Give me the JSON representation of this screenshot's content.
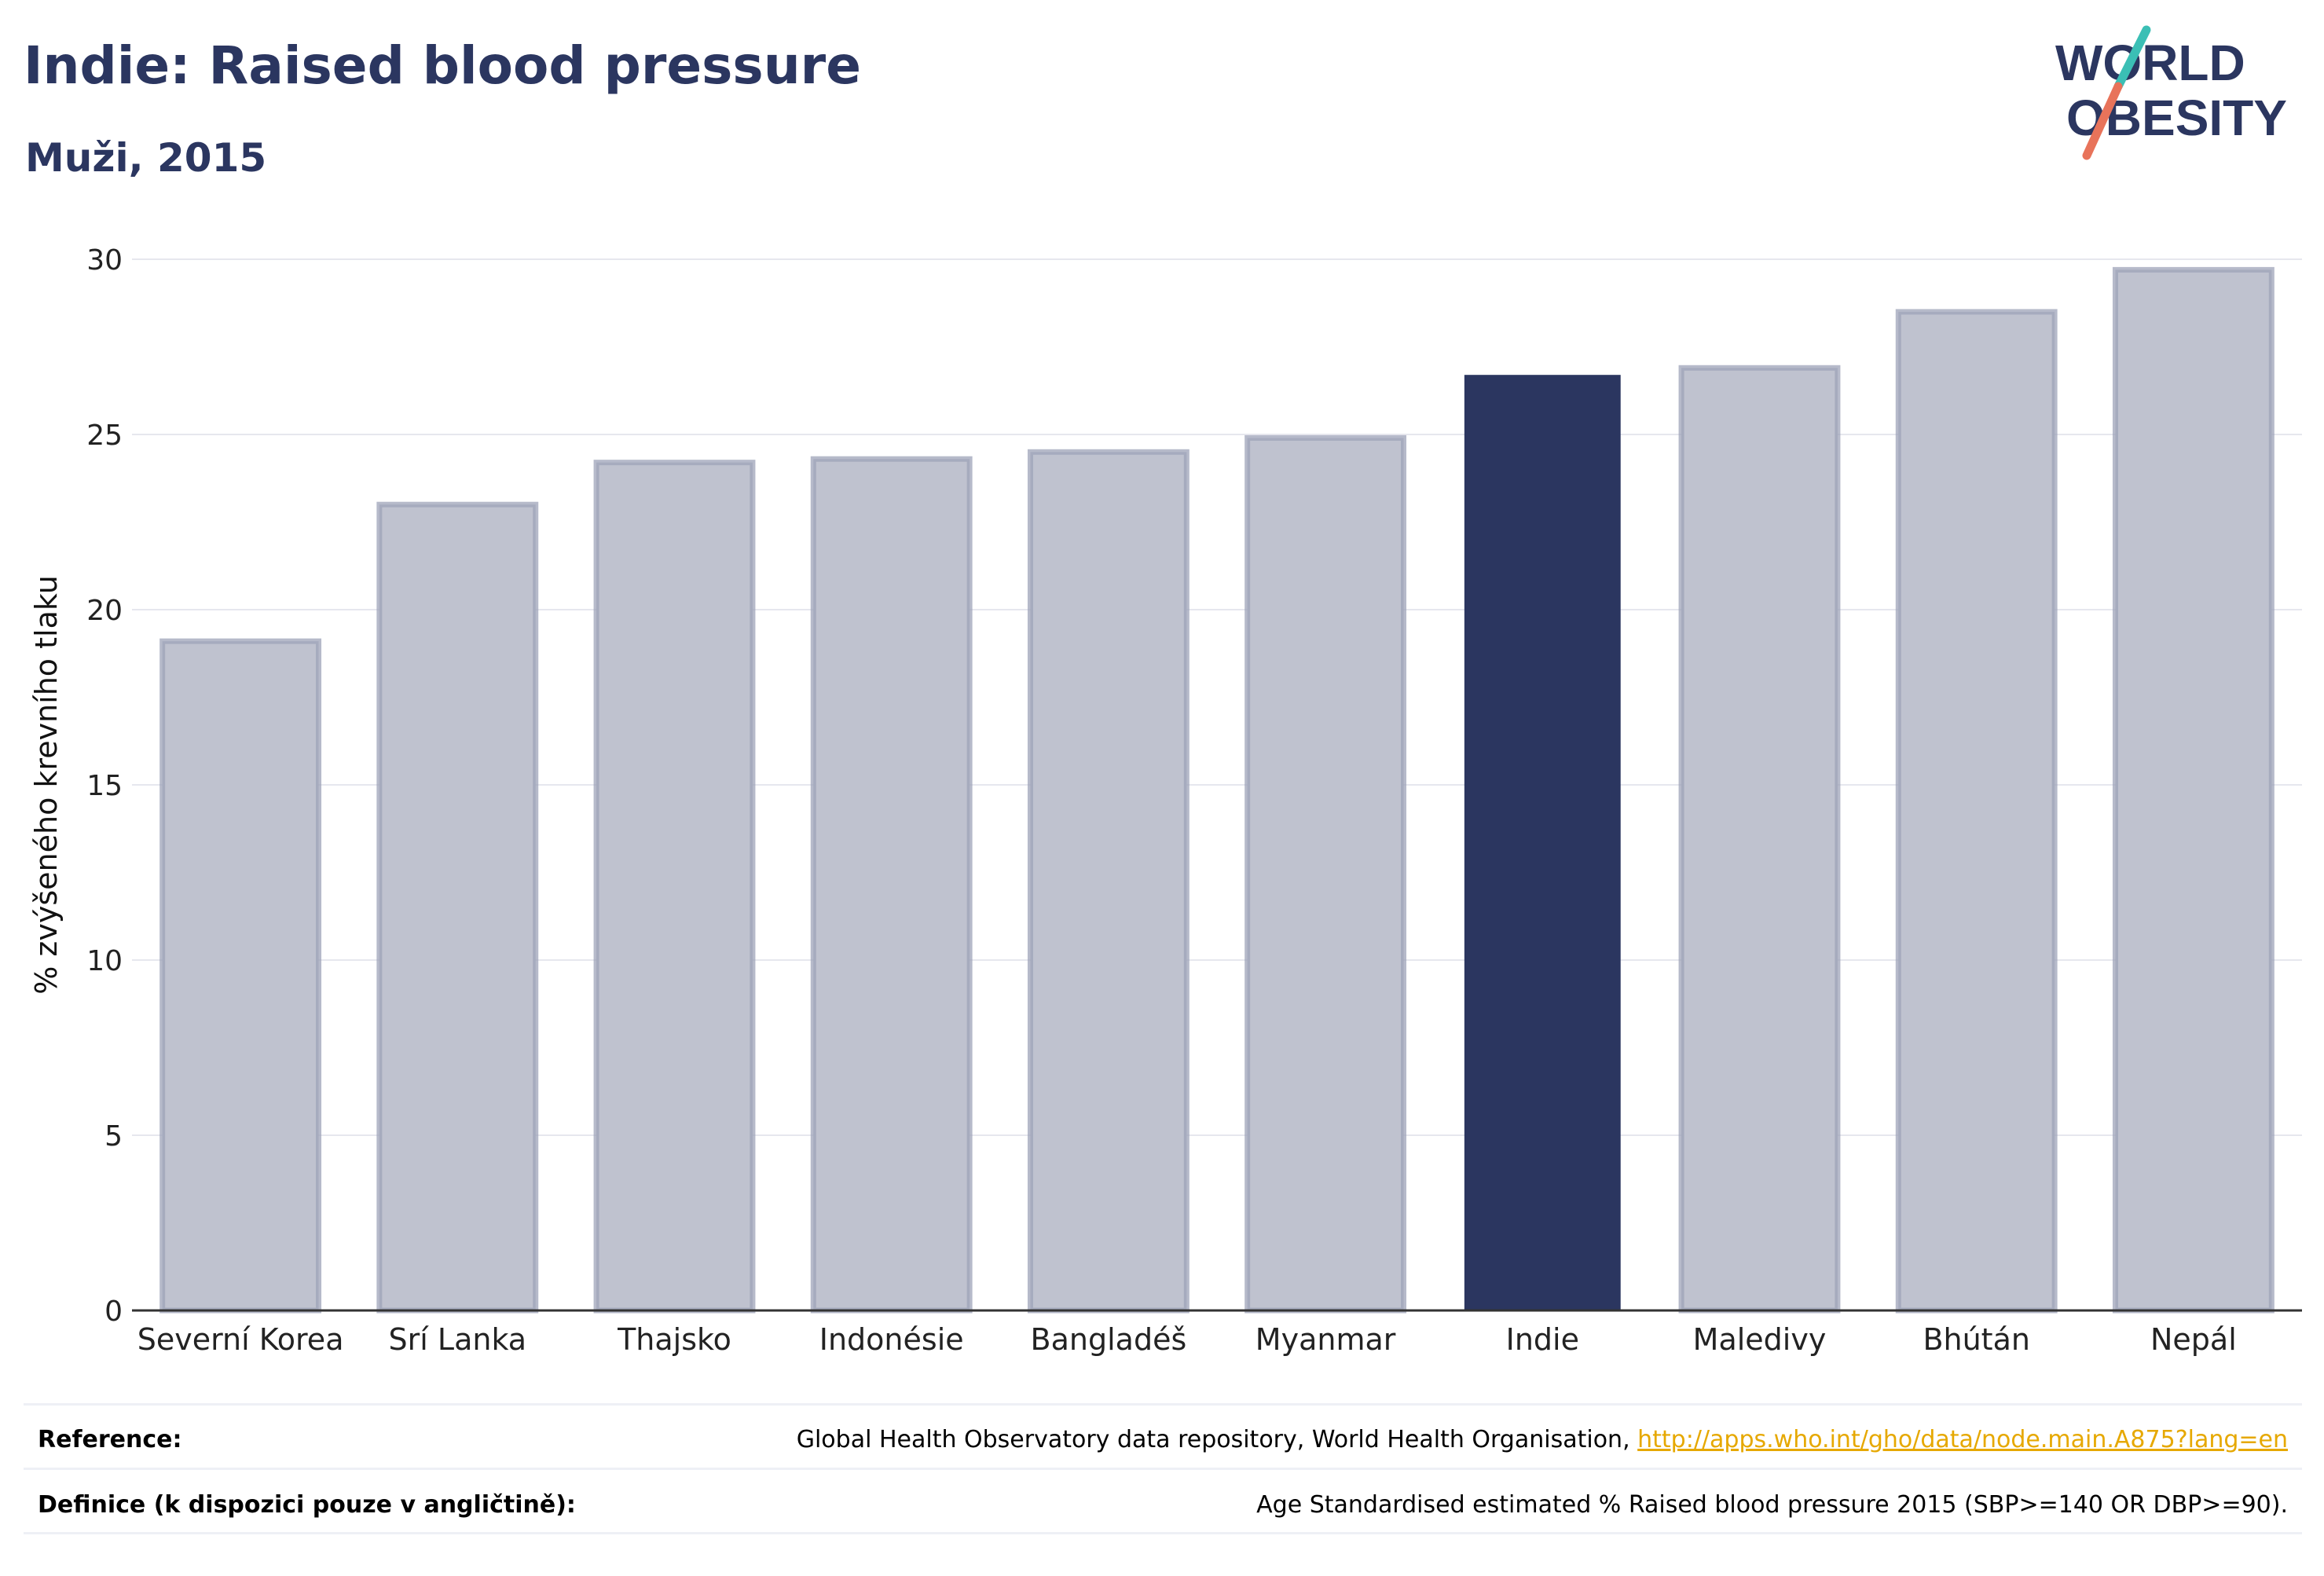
{
  "header": {
    "title": "Indie: Raised blood pressure",
    "subtitle": "Muži, 2015"
  },
  "logo": {
    "line1": "WORLD",
    "line2": "OBESITY",
    "brand_color": "#2b3660",
    "slash_colors": [
      "#3bbfb5",
      "#e8735a"
    ]
  },
  "chart_data": {
    "type": "bar",
    "title": "Indie: Raised blood pressure",
    "subtitle": "Muži, 2015",
    "ylabel": "% zvýšeného krevního tlaku",
    "xlabel": "",
    "ylim": [
      0,
      30
    ],
    "yticks": [
      0,
      5,
      10,
      15,
      20,
      25,
      30
    ],
    "grid": true,
    "highlight": "Indie",
    "colors": {
      "default": "#bfc2cf",
      "default_border": "#9ea3b8",
      "highlight": "#2b3660"
    },
    "categories": [
      "Severní Korea",
      "Srí Lanka",
      "Thajsko",
      "Indonésie",
      "Bangladéš",
      "Myanmar",
      "Indie",
      "Maledivy",
      "Bhútán",
      "Nepál"
    ],
    "values": [
      19.1,
      23.0,
      24.2,
      24.3,
      24.5,
      24.9,
      26.7,
      26.9,
      28.5,
      29.7
    ]
  },
  "footer": {
    "reference_label": "Reference:",
    "reference_text": "Global Health Observatory data repository, World Health Organisation, ",
    "reference_link": "http://apps.who.int/gho/data/node.main.A875?lang=en",
    "definition_label": "Definice (k dispozici pouze v angličtině):",
    "definition_text": "Age Standardised estimated % Raised blood pressure 2015 (SBP>=140 OR DBP>=90)."
  }
}
